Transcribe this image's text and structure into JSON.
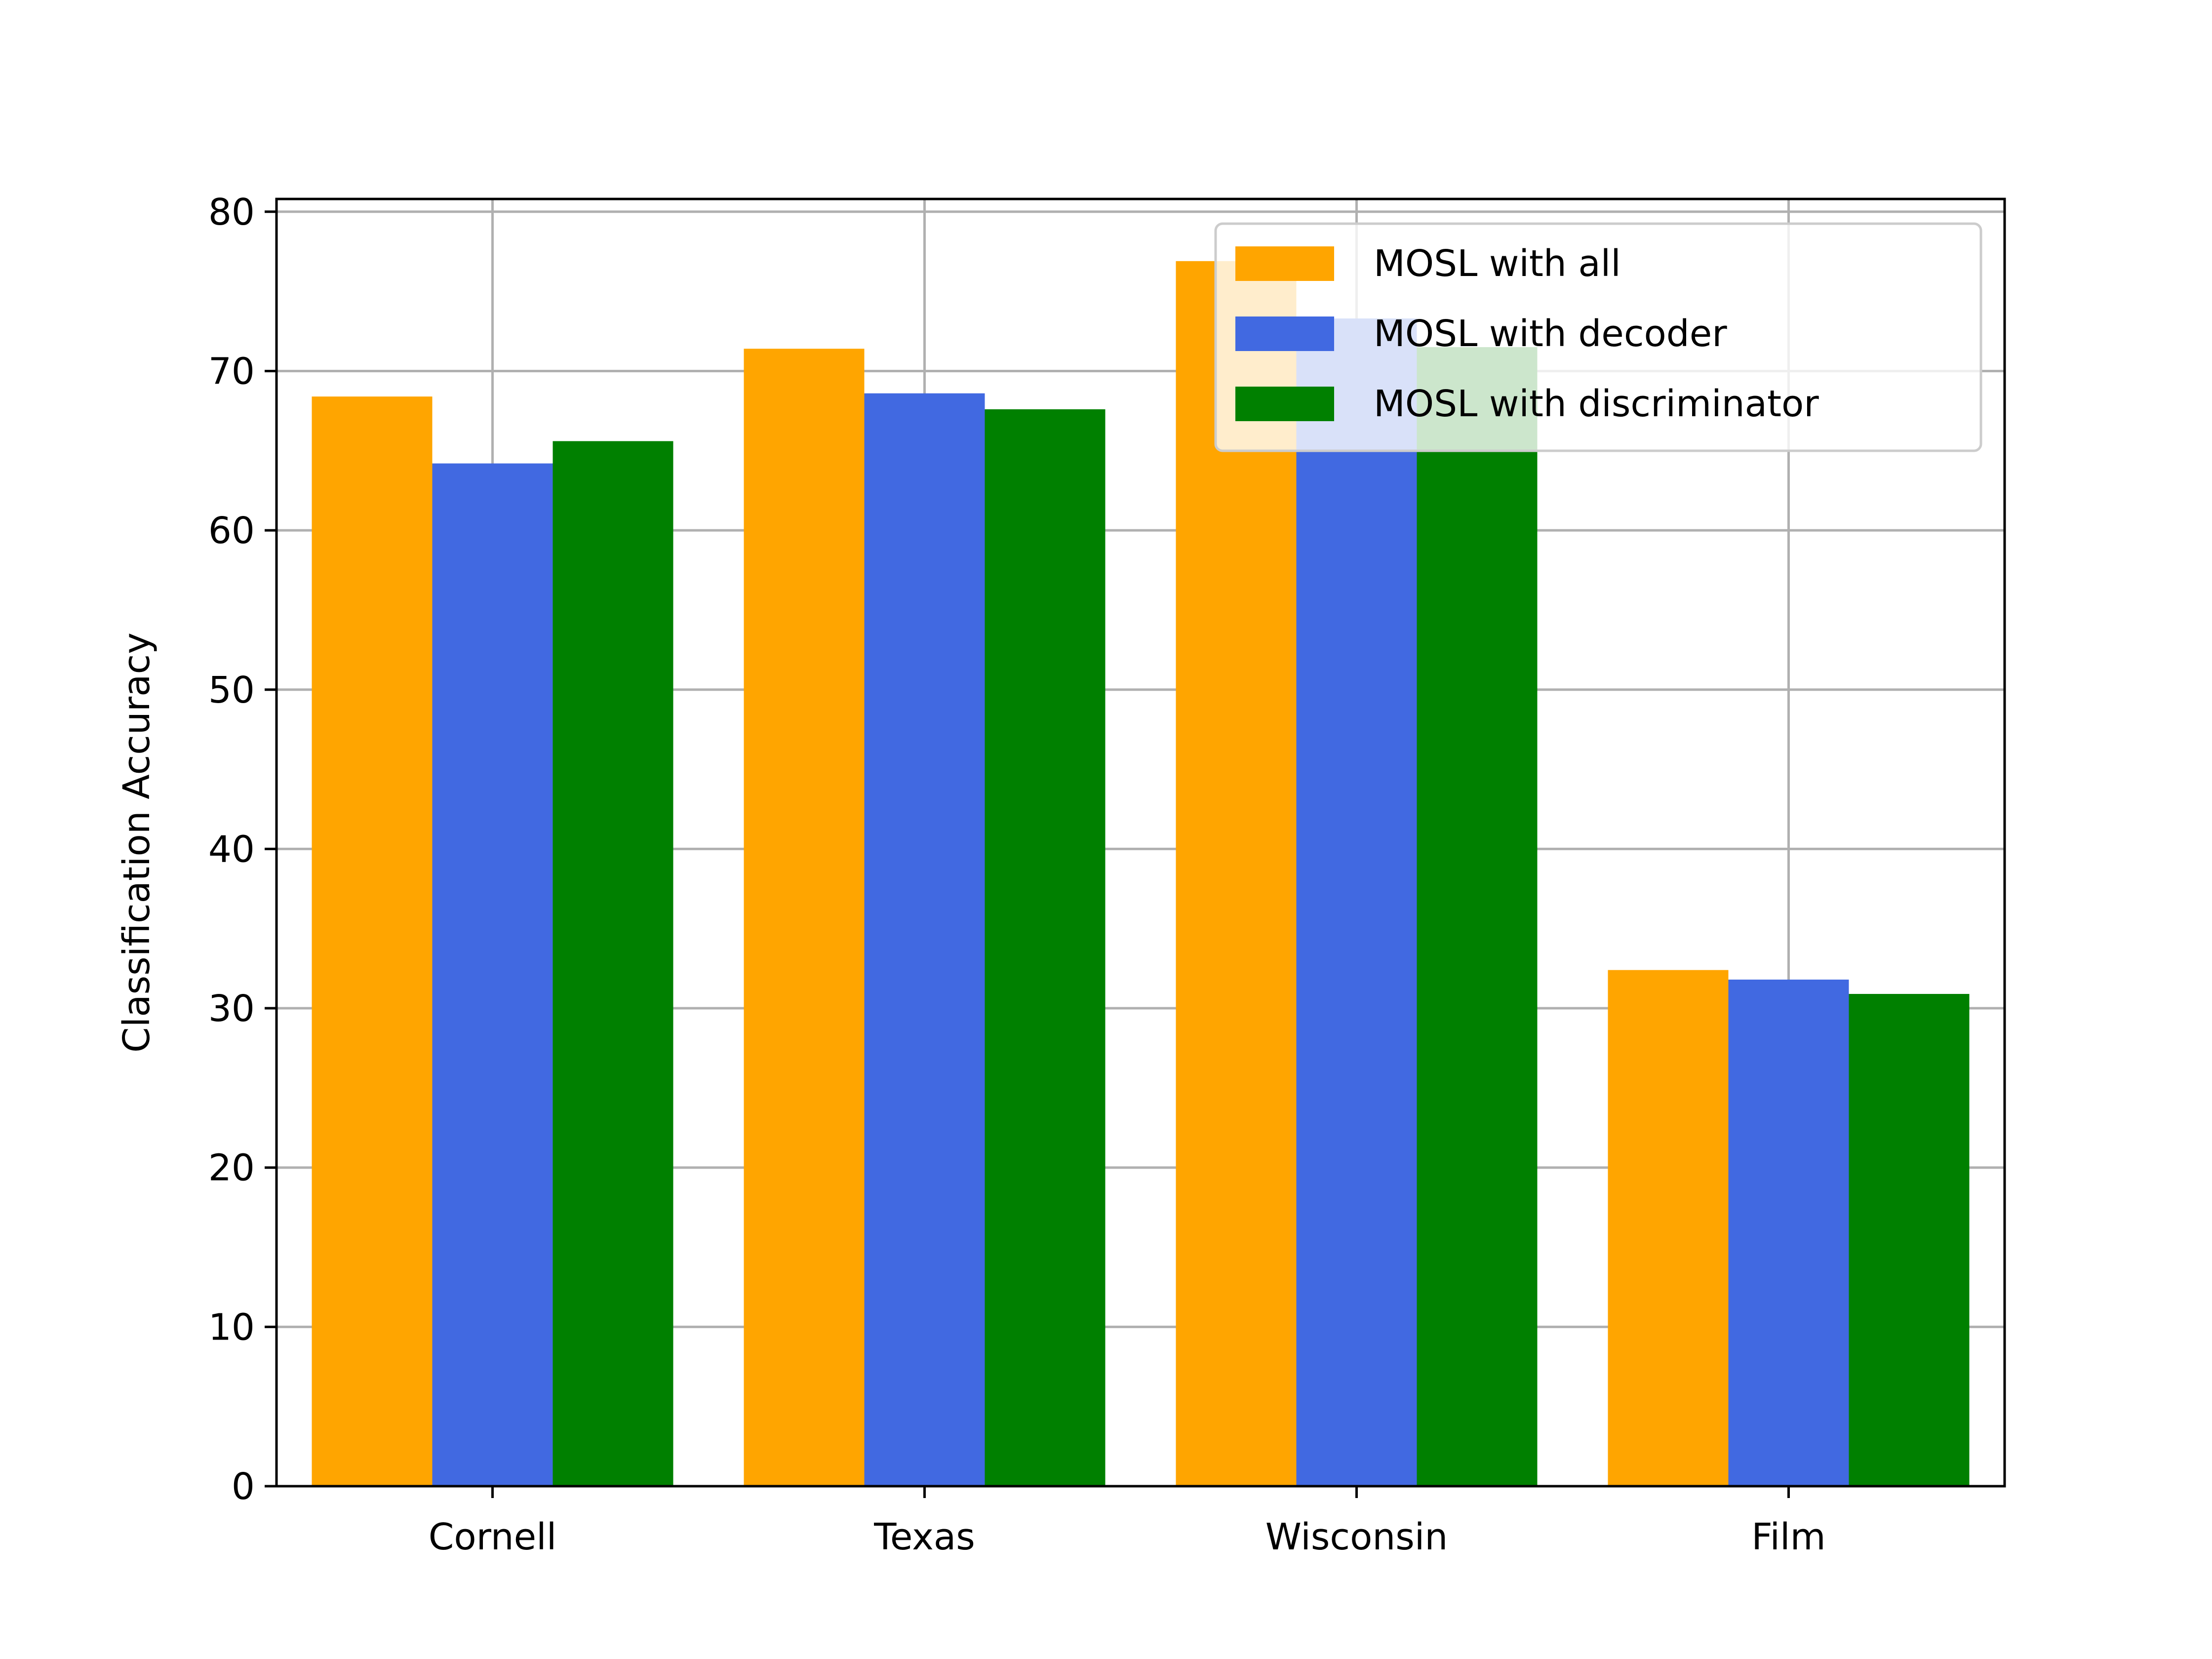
{
  "chart_data": {
    "type": "bar",
    "title": "",
    "xlabel": "",
    "ylabel": "Classification Accuracy",
    "categories": [
      "Cornell",
      "Texas",
      "Wisconsin",
      "Film"
    ],
    "series": [
      {
        "name": "MOSL with all",
        "color": "#FFA500",
        "values": [
          68.4,
          71.4,
          76.9,
          32.4
        ]
      },
      {
        "name": "MOSL with decoder",
        "color": "#4169E1",
        "values": [
          64.2,
          68.6,
          73.3,
          31.8
        ]
      },
      {
        "name": "MOSL with discriminator",
        "color": "#008000",
        "values": [
          65.6,
          67.6,
          71.5,
          30.9
        ]
      }
    ],
    "ylim": [
      0,
      80.8
    ],
    "yticks": [
      0,
      10,
      20,
      30,
      40,
      50,
      60,
      70,
      80
    ],
    "grid": true,
    "legend_position": "upper-right"
  }
}
